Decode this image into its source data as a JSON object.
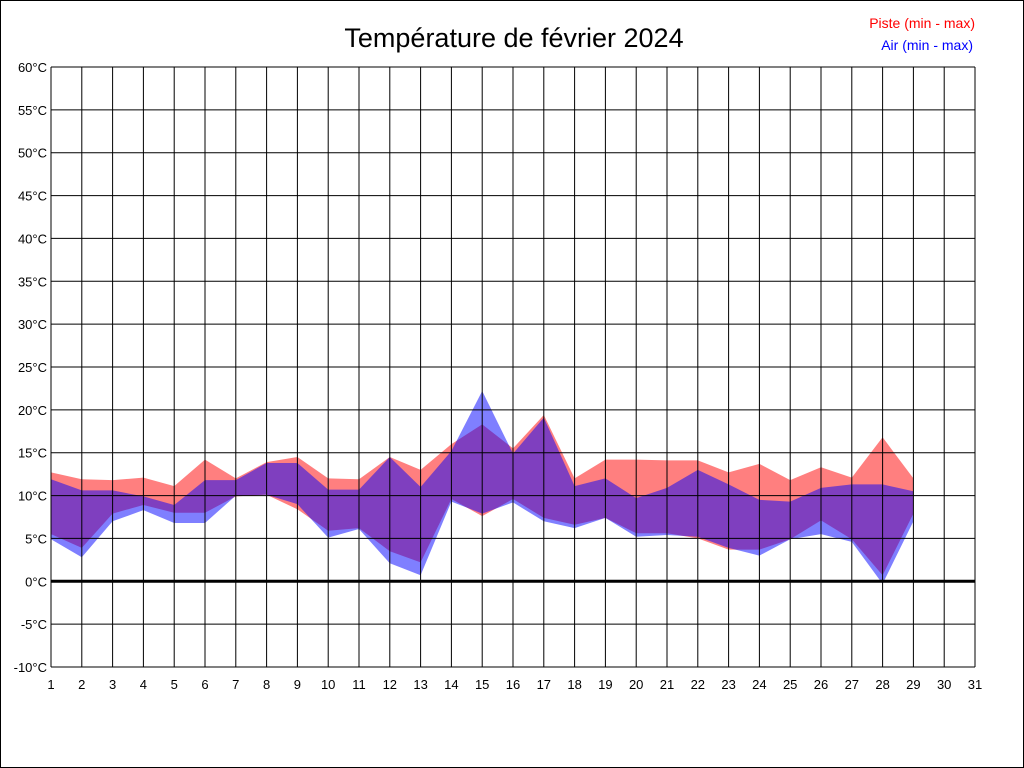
{
  "chart_data": {
    "type": "area",
    "title": "Température de février 2024",
    "x": [
      1,
      2,
      3,
      4,
      5,
      6,
      7,
      8,
      9,
      10,
      11,
      12,
      13,
      14,
      15,
      16,
      17,
      18,
      19,
      20,
      21,
      22,
      23,
      24,
      25,
      26,
      27,
      28,
      29
    ],
    "xlim": [
      1,
      31
    ],
    "xticks": [
      "1",
      "2",
      "3",
      "4",
      "5",
      "6",
      "7",
      "8",
      "9",
      "10",
      "11",
      "12",
      "13",
      "14",
      "15",
      "16",
      "17",
      "18",
      "19",
      "20",
      "21",
      "22",
      "23",
      "24",
      "25",
      "26",
      "27",
      "28",
      "29",
      "30",
      "31"
    ],
    "ylim": [
      -10,
      60
    ],
    "yticks": [
      "-10°C",
      "-5°C",
      "0°C",
      "5°C",
      "10°C",
      "15°C",
      "20°C",
      "25°C",
      "30°C",
      "35°C",
      "40°C",
      "45°C",
      "50°C",
      "55°C",
      "60°C"
    ],
    "ytick_values": [
      -10,
      -5,
      0,
      5,
      10,
      15,
      20,
      25,
      30,
      35,
      40,
      45,
      50,
      55,
      60
    ],
    "grid": true,
    "legend_position": "top-right",
    "series": [
      {
        "name": "Piste (min - max)",
        "color": "#ff0000",
        "max": [
          12.7,
          11.9,
          11.8,
          12.1,
          11.1,
          14.2,
          12.0,
          13.9,
          14.5,
          12.0,
          11.9,
          14.5,
          13.0,
          16.0,
          18.3,
          15.5,
          19.4,
          12.0,
          14.2,
          14.2,
          14.1,
          14.1,
          12.7,
          13.7,
          11.8,
          13.3,
          12.1,
          16.8,
          12.0
        ],
        "min": [
          5.5,
          3.9,
          7.9,
          8.9,
          8.0,
          8.0,
          9.9,
          10.1,
          8.4,
          5.9,
          6.2,
          3.5,
          2.2,
          9.6,
          7.6,
          9.6,
          7.4,
          6.6,
          7.4,
          5.6,
          5.6,
          5.0,
          3.7,
          3.7,
          4.9,
          7.1,
          4.9,
          0.7,
          7.9
        ]
      },
      {
        "name": "Air (min - max)",
        "color": "#0000ff",
        "max": [
          11.9,
          10.6,
          10.6,
          9.9,
          8.9,
          11.8,
          11.8,
          13.8,
          13.8,
          10.7,
          10.7,
          14.5,
          11.0,
          15.2,
          22.2,
          14.9,
          19.1,
          11.1,
          12.0,
          9.7,
          10.9,
          13.0,
          11.3,
          9.5,
          9.3,
          10.9,
          11.3,
          11.3,
          10.5
        ],
        "min": [
          4.9,
          2.8,
          7.0,
          8.3,
          6.8,
          6.8,
          10.0,
          10.1,
          9.0,
          5.1,
          6.1,
          2.1,
          0.7,
          9.3,
          7.9,
          9.2,
          7.0,
          6.2,
          7.4,
          5.2,
          5.4,
          5.2,
          3.9,
          3.0,
          4.9,
          5.5,
          4.6,
          -0.3,
          7.0
        ]
      }
    ]
  }
}
